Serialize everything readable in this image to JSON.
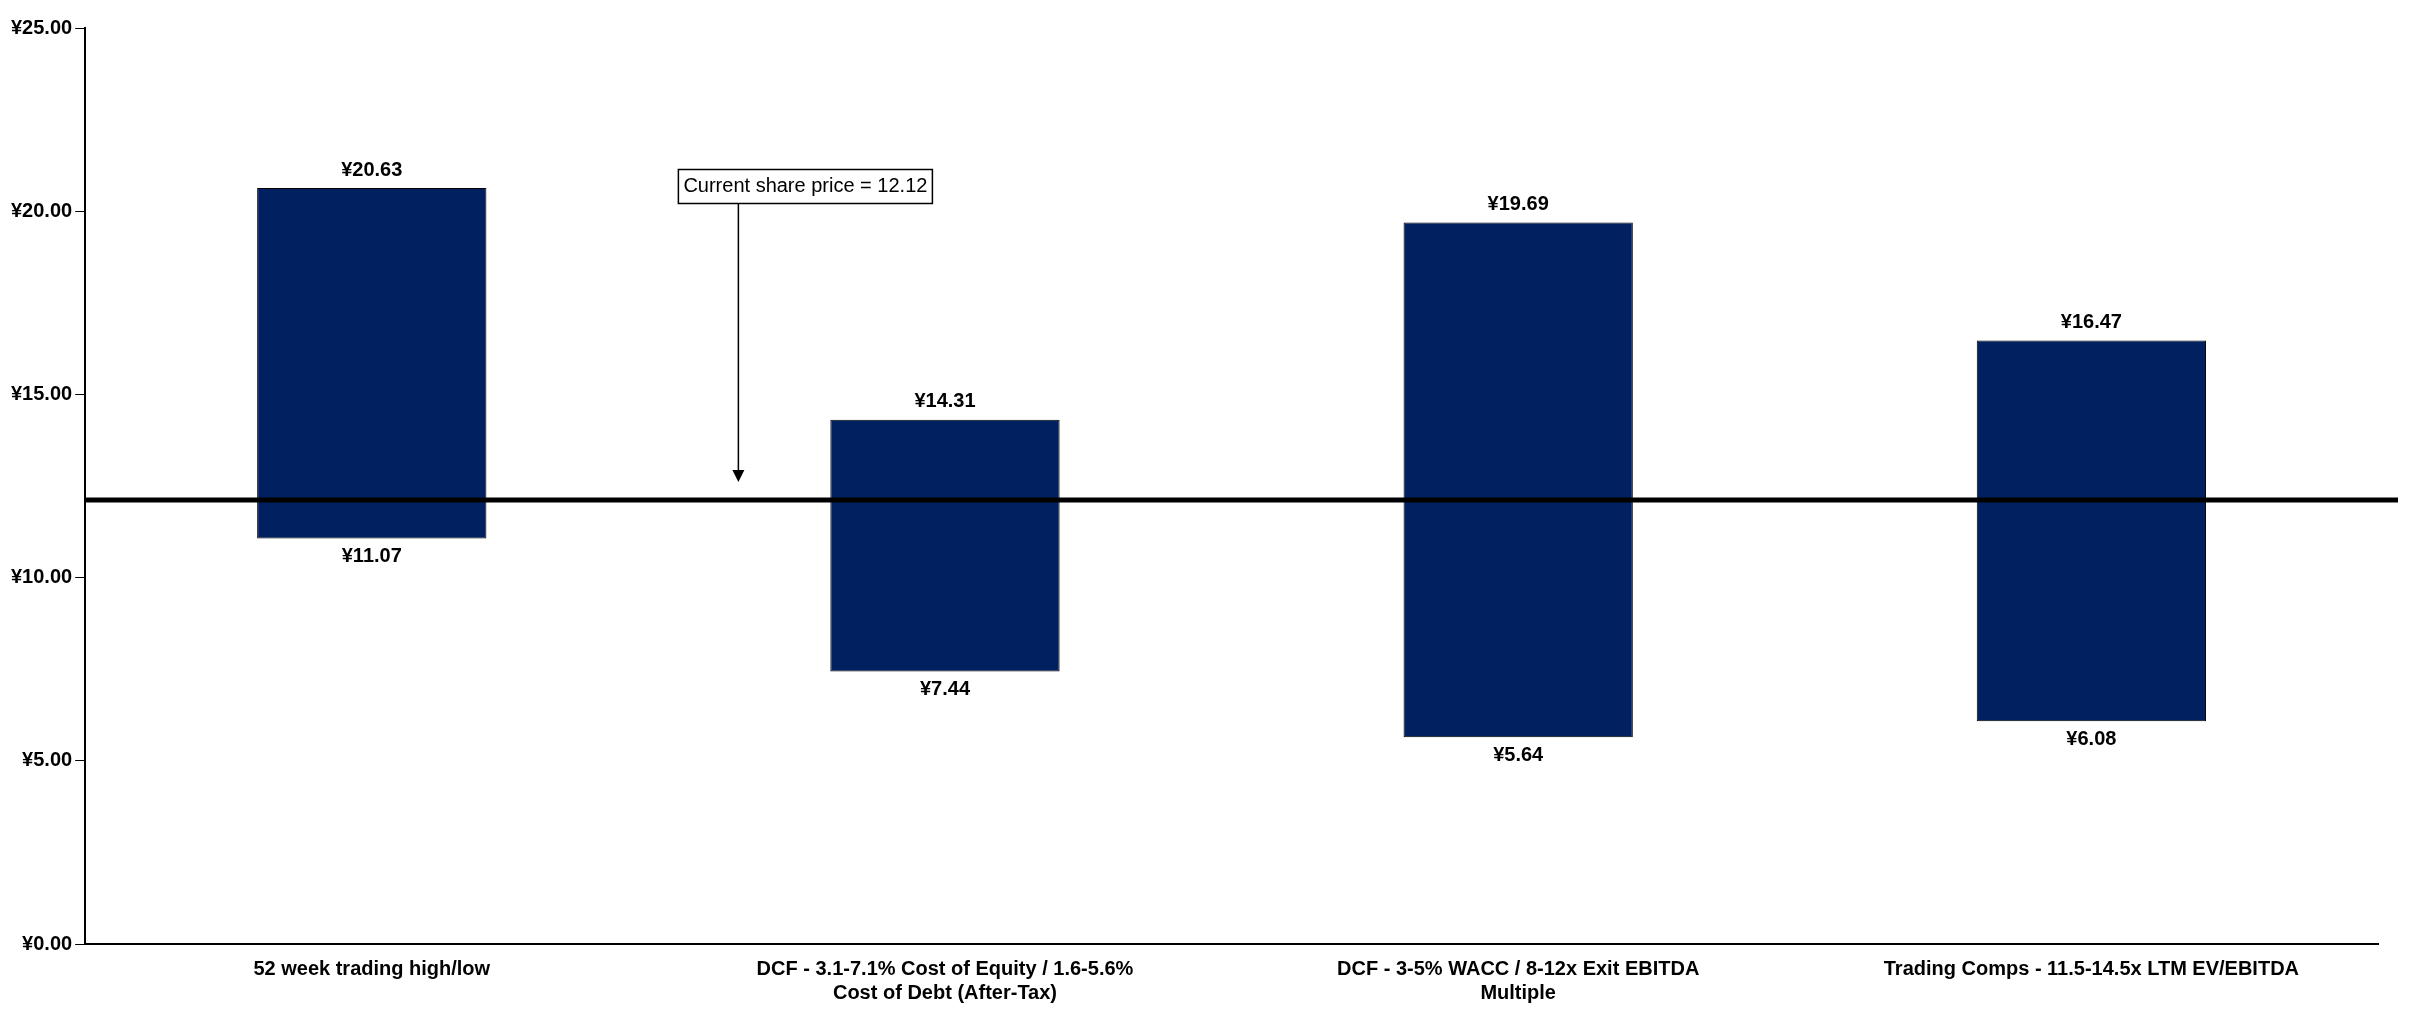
{
  "chart_data": {
    "type": "bar",
    "categories": [
      "52 week trading high/low",
      "DCF - 3.1-7.1% Cost of Equity / 1.6-5.6% Cost of Debt (After-Tax)",
      "DCF - 3-5% WACC / 8-12x Exit EBITDA Multiple",
      "Trading Comps - 11.5-14.5x LTM EV/EBITDA"
    ],
    "base": [
      11.07,
      7.44,
      5.64,
      6.08
    ],
    "values": [
      9.56,
      6.87,
      14.05,
      10.39
    ],
    "color": "#002060",
    "ylim": [
      0,
      25
    ],
    "yticks": [
      {
        "value": 0,
        "label": "¥0.00"
      },
      {
        "value": 5,
        "label": "¥5.00"
      },
      {
        "value": 10,
        "label": "¥10.00"
      },
      {
        "value": 15,
        "label": "¥15.00"
      },
      {
        "value": 20,
        "label": "¥20.00"
      },
      {
        "value": 25,
        "label": "¥25.00"
      }
    ],
    "ref_lines": [
      {
        "axis": "y",
        "value": 12.12,
        "label": "Current share price = 12.12",
        "color": "#000000"
      }
    ],
    "annotations": [
      {
        "text": "¥20.63",
        "x": "52 week trading high/low",
        "y": 20.63
      },
      {
        "text": "¥11.07",
        "x": "52 week trading high/low",
        "y": 11.07
      },
      {
        "text": "¥14.31",
        "x": "DCF - 3.1-7.1% Cost of Equity / 1.6-5.6% Cost of Debt (After-Tax)",
        "y": 14.31
      },
      {
        "text": "¥7.44",
        "x": "DCF - 3.1-7.1% Cost of Equity / 1.6-5.6% Cost of Debt (After-Tax)",
        "y": 7.44
      },
      {
        "text": "¥19.69",
        "x": "DCF - 3-5% WACC / 8-12x Exit EBITDA Multiple",
        "y": 19.69
      },
      {
        "text": "¥5.64",
        "x": "DCF - 3-5% WACC / 8-12x Exit EBITDA Multiple",
        "y": 5.64
      },
      {
        "text": "¥16.47",
        "x": "Trading Comps - 11.5-14.5x LTM EV/EBITDA",
        "y": 16.47
      },
      {
        "text": "¥6.08",
        "x": "Trading Comps - 11.5-14.5x LTM EV/EBITDA",
        "y": 6.08
      }
    ],
    "grid": false,
    "legend": false
  }
}
